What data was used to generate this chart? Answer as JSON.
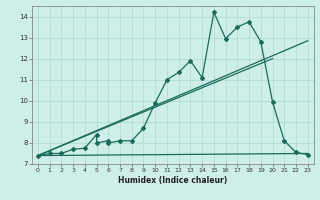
{
  "xlabel": "Humidex (Indice chaleur)",
  "bg_color": "#ceeee8",
  "line_color": "#1a6b5a",
  "grid_color": "#aad8d0",
  "xlim": [
    -0.5,
    23.5
  ],
  "ylim": [
    7,
    14.5
  ],
  "xticks": [
    0,
    1,
    2,
    3,
    4,
    5,
    6,
    7,
    8,
    9,
    10,
    11,
    12,
    13,
    14,
    15,
    16,
    17,
    18,
    19,
    20,
    21,
    22,
    23
  ],
  "yticks": [
    7,
    8,
    9,
    10,
    11,
    12,
    13,
    14
  ],
  "line1_x": [
    0,
    1,
    2,
    3,
    4,
    5,
    5,
    6,
    6,
    7,
    8,
    9,
    10,
    11,
    12,
    13,
    14,
    15,
    16,
    17,
    18,
    19,
    20,
    21,
    22,
    23
  ],
  "line1_y": [
    7.4,
    7.5,
    7.5,
    7.7,
    7.75,
    8.4,
    8.0,
    8.1,
    8.0,
    8.1,
    8.1,
    8.7,
    9.9,
    11.0,
    11.35,
    11.9,
    11.1,
    14.2,
    12.95,
    13.5,
    13.75,
    12.8,
    9.95,
    8.1,
    7.55,
    7.45
  ],
  "line2_x": [
    0,
    23
  ],
  "line2_y": [
    7.4,
    12.85
  ],
  "line3_x": [
    0,
    20
  ],
  "line3_y": [
    7.4,
    12.0
  ],
  "line4_x": [
    0,
    23
  ],
  "line4_y": [
    7.4,
    7.5
  ]
}
